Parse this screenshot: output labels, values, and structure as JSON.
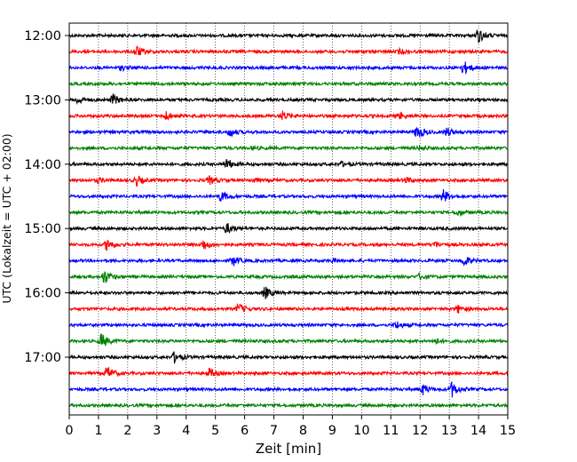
{
  "chart_data": {
    "type": "line",
    "title": "",
    "xlabel": "Zeit  [min]",
    "ylabel": "UTC (Lokalzeit = UTC + 02:00)",
    "xlim": [
      0,
      15
    ],
    "x_ticks": [
      0,
      1,
      2,
      3,
      4,
      5,
      6,
      7,
      8,
      9,
      10,
      11,
      12,
      13,
      14,
      15
    ],
    "x_tick_labels": [
      "0",
      "1",
      "2",
      "3",
      "4",
      "5",
      "6",
      "7",
      "8",
      "9",
      "10",
      "11",
      "12",
      "13",
      "14",
      "15"
    ],
    "y_tick_labels": [
      "12:00",
      "13:00",
      "14:00",
      "15:00",
      "16:00",
      "17:00"
    ],
    "grid": "vertical-dotted",
    "colors": [
      "#000000",
      "#ff0000",
      "#0000ff",
      "#008000"
    ],
    "traces": [
      {
        "start": "12:00",
        "color": "#000000",
        "events": [
          [
            14.0,
            1.0
          ]
        ]
      },
      {
        "start": "12:15",
        "color": "#ff0000",
        "events": [
          [
            2.3,
            0.8
          ],
          [
            11.3,
            0.3
          ]
        ]
      },
      {
        "start": "12:30",
        "color": "#0000ff",
        "events": [
          [
            1.8,
            0.3
          ],
          [
            13.5,
            0.9
          ]
        ]
      },
      {
        "start": "12:45",
        "color": "#008000",
        "events": []
      },
      {
        "start": "13:00",
        "color": "#000000",
        "events": [
          [
            0.3,
            0.5
          ],
          [
            1.5,
            0.7
          ]
        ]
      },
      {
        "start": "13:15",
        "color": "#ff0000",
        "events": [
          [
            3.3,
            0.6
          ],
          [
            7.3,
            0.6
          ],
          [
            11.3,
            0.4
          ]
        ]
      },
      {
        "start": "13:30",
        "color": "#0000ff",
        "events": [
          [
            5.5,
            0.6
          ],
          [
            11.9,
            1.0
          ],
          [
            12.9,
            0.6
          ]
        ]
      },
      {
        "start": "13:45",
        "color": "#008000",
        "events": [
          [
            6.3,
            0.2
          ],
          [
            12.0,
            0.3
          ]
        ]
      },
      {
        "start": "14:00",
        "color": "#000000",
        "events": [
          [
            5.4,
            0.7
          ],
          [
            9.3,
            0.3
          ]
        ]
      },
      {
        "start": "14:15",
        "color": "#ff0000",
        "events": [
          [
            1.0,
            0.3
          ],
          [
            2.3,
            0.7
          ],
          [
            4.8,
            0.5
          ],
          [
            6.3,
            0.3
          ],
          [
            11.5,
            0.4
          ]
        ]
      },
      {
        "start": "14:30",
        "color": "#0000ff",
        "events": [
          [
            5.2,
            0.7
          ],
          [
            12.8,
            0.9
          ]
        ]
      },
      {
        "start": "14:45",
        "color": "#008000",
        "events": [
          [
            13.3,
            0.4
          ]
        ]
      },
      {
        "start": "15:00",
        "color": "#000000",
        "events": [
          [
            5.4,
            0.7
          ]
        ]
      },
      {
        "start": "15:15",
        "color": "#ff0000",
        "events": [
          [
            1.3,
            0.8
          ],
          [
            4.6,
            0.7
          ],
          [
            12.5,
            0.4
          ]
        ]
      },
      {
        "start": "15:30",
        "color": "#0000ff",
        "events": [
          [
            5.6,
            0.7
          ],
          [
            9.0,
            0.2
          ],
          [
            13.5,
            0.7
          ]
        ]
      },
      {
        "start": "15:45",
        "color": "#008000",
        "events": [
          [
            1.2,
            1.0
          ],
          [
            12.0,
            0.4
          ]
        ]
      },
      {
        "start": "16:00",
        "color": "#000000",
        "events": [
          [
            6.7,
            0.8
          ]
        ]
      },
      {
        "start": "16:15",
        "color": "#ff0000",
        "events": [
          [
            5.8,
            0.7
          ],
          [
            13.3,
            0.5
          ]
        ]
      },
      {
        "start": "16:30",
        "color": "#0000ff",
        "events": [
          [
            11.2,
            0.5
          ]
        ]
      },
      {
        "start": "16:45",
        "color": "#008000",
        "events": [
          [
            1.1,
            1.0
          ],
          [
            12.5,
            0.4
          ]
        ]
      },
      {
        "start": "17:00",
        "color": "#000000",
        "events": [
          [
            3.6,
            0.7
          ]
        ]
      },
      {
        "start": "17:15",
        "color": "#ff0000",
        "events": [
          [
            1.3,
            0.9
          ],
          [
            4.8,
            0.6
          ]
        ]
      },
      {
        "start": "17:30",
        "color": "#0000ff",
        "events": [
          [
            12.1,
            0.7
          ],
          [
            13.1,
            1.0
          ]
        ]
      },
      {
        "start": "17:45",
        "color": "#008000",
        "events": []
      }
    ]
  }
}
